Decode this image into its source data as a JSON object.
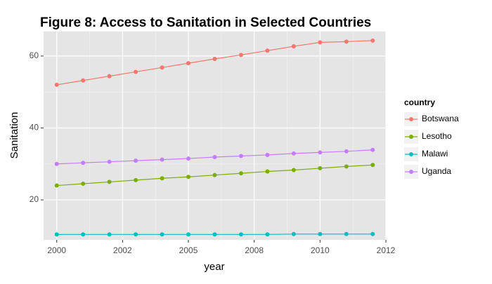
{
  "chart_data": {
    "type": "line",
    "title": "Figure 8: Access to Sanitation in Selected Countries",
    "x_label": "year",
    "y_label": "Sanitation",
    "legend_title": "country",
    "x": [
      2000,
      2001,
      2002,
      2003,
      2004,
      2005,
      2006,
      2007,
      2008,
      2009,
      2010,
      2011,
      2012
    ],
    "series": [
      {
        "name": "Botswana",
        "color": "#F8766D",
        "values": [
          52,
          53.2,
          54.4,
          55.6,
          56.8,
          58,
          59.2,
          60.3,
          61.5,
          62.7,
          63.8,
          64,
          64.3
        ]
      },
      {
        "name": "Lesotho",
        "color": "#7CAE00",
        "values": [
          24,
          24.5,
          25,
          25.5,
          26,
          26.4,
          26.9,
          27.4,
          27.9,
          28.3,
          28.8,
          29.3,
          29.7
        ]
      },
      {
        "name": "Malawi",
        "color": "#00BFC4",
        "values": [
          10.4,
          10.4,
          10.4,
          10.4,
          10.4,
          10.4,
          10.4,
          10.4,
          10.4,
          10.5,
          10.5,
          10.5,
          10.5
        ]
      },
      {
        "name": "Uganda",
        "color": "#C77CFF",
        "values": [
          30,
          30.3,
          30.6,
          30.9,
          31.2,
          31.5,
          31.9,
          32.2,
          32.5,
          32.9,
          33.2,
          33.5,
          33.9
        ]
      }
    ],
    "xlim": [
      1999.5,
      2012.5
    ],
    "xticks": [
      2000,
      {
        "value": 2002.5,
        "label": "2002"
      },
      2005,
      {
        "value": 2007.5,
        "label": "2008"
      },
      2010,
      {
        "value": 2012.5,
        "label": "2012"
      }
    ],
    "ylim": [
      8.9,
      66.8
    ],
    "yticks": [
      20,
      40,
      60
    ],
    "grid": true,
    "legend": "right"
  }
}
